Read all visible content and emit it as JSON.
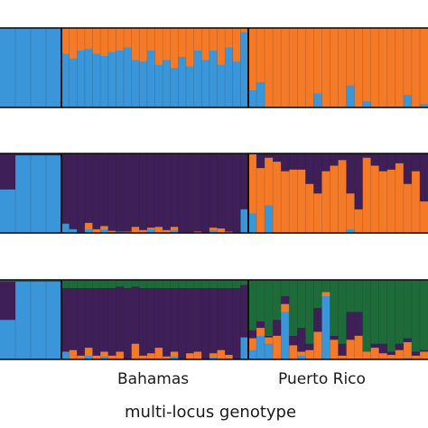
{
  "chart_data": [
    {
      "type": "bar",
      "stacked": true,
      "ylim": [
        0,
        1
      ],
      "populations": [
        {
          "name": "",
          "n_bars": 4
        },
        {
          "name": "Bahamas",
          "n_bars": 24
        },
        {
          "name": "Puerto Rico",
          "n_bars": 22
        }
      ],
      "series": [
        {
          "name": "",
          "color": "#3a96d8",
          "values": [
            1.0,
            1.0,
            1.0,
            1.0,
            0.68,
            0.62,
            0.72,
            0.74,
            0.68,
            0.65,
            0.7,
            0.72,
            0.76,
            0.6,
            0.58,
            0.72,
            0.54,
            0.6,
            0.5,
            0.64,
            0.52,
            0.72,
            0.6,
            0.72,
            0.54,
            0.76,
            0.58,
            0.95,
            0.22,
            0.32,
            0.0,
            0.0,
            0.0,
            0.0,
            0.0,
            0.0,
            0.18,
            0.0,
            0.0,
            0.0,
            0.28,
            0.0,
            0.08,
            0.0,
            0.0,
            0.0,
            0.0,
            0.16,
            0.0,
            0.05
          ]
        },
        {
          "name": "",
          "color": "#f47a28",
          "values": [
            0.0,
            0.0,
            0.0,
            0.0,
            0.32,
            0.38,
            0.28,
            0.26,
            0.32,
            0.35,
            0.3,
            0.28,
            0.24,
            0.4,
            0.42,
            0.28,
            0.46,
            0.4,
            0.5,
            0.36,
            0.48,
            0.28,
            0.4,
            0.28,
            0.46,
            0.24,
            0.42,
            0.05,
            0.78,
            0.68,
            1.0,
            1.0,
            1.0,
            1.0,
            1.0,
            1.0,
            0.82,
            1.0,
            1.0,
            1.0,
            0.72,
            1.0,
            0.92,
            1.0,
            1.0,
            1.0,
            1.0,
            0.84,
            1.0,
            0.95
          ]
        }
      ]
    },
    {
      "type": "bar",
      "stacked": true,
      "ylim": [
        0,
        1
      ],
      "series": [
        {
          "name": "",
          "color": "#3a96d8",
          "values": [
            0.55,
            0.98,
            0.98,
            0.98,
            0.12,
            0.05,
            0.0,
            0.05,
            0.0,
            0.05,
            0.0,
            0.02,
            0.0,
            0.0,
            0.0,
            0.05,
            0.0,
            0.0,
            0.04,
            0.0,
            0.0,
            0.0,
            0.0,
            0.04,
            0.0,
            0.0,
            0.0,
            0.3,
            0.25,
            0.0,
            0.35,
            0.0,
            0.0,
            0.0,
            0.0,
            0.0,
            0.0,
            0.0,
            0.0,
            0.0,
            0.05,
            0.0,
            0.0,
            0.0,
            0.0,
            0.0,
            0.0,
            0.0,
            0.0,
            0.0
          ]
        },
        {
          "name": "",
          "color": "#f47a28",
          "values": [
            0.0,
            0.0,
            0.0,
            0.0,
            0.0,
            0.0,
            0.0,
            0.08,
            0.05,
            0.04,
            0.03,
            0.0,
            0.02,
            0.08,
            0.04,
            0.02,
            0.08,
            0.04,
            0.04,
            0.0,
            0.0,
            0.02,
            0.0,
            0.03,
            0.06,
            0.02,
            0.0,
            0.0,
            0.75,
            0.82,
            0.6,
            0.9,
            0.78,
            0.8,
            0.8,
            0.62,
            0.5,
            0.78,
            0.85,
            0.92,
            0.45,
            0.3,
            0.95,
            0.85,
            0.78,
            0.8,
            0.88,
            0.62,
            0.78,
            0.4
          ]
        },
        {
          "name": "",
          "color": "#3e1f57",
          "values": [
            0.45,
            0.02,
            0.02,
            0.02,
            0.88,
            0.95,
            1.0,
            0.87,
            0.95,
            0.91,
            0.97,
            0.98,
            0.98,
            0.92,
            0.96,
            0.93,
            0.92,
            0.96,
            0.92,
            1.0,
            1.0,
            0.98,
            1.0,
            0.93,
            0.94,
            0.98,
            1.0,
            0.7,
            0.0,
            0.18,
            0.05,
            0.1,
            0.22,
            0.2,
            0.2,
            0.38,
            0.5,
            0.22,
            0.15,
            0.08,
            0.5,
            0.7,
            0.05,
            0.15,
            0.22,
            0.2,
            0.12,
            0.38,
            0.22,
            0.6
          ]
        }
      ]
    },
    {
      "type": "bar",
      "stacked": true,
      "ylim": [
        0,
        1
      ],
      "series": [
        {
          "name": "",
          "color": "#3a96d8",
          "values": [
            0.5,
            0.98,
            0.98,
            0.98,
            0.1,
            0.0,
            0.0,
            0.05,
            0.0,
            0.04,
            0.0,
            0.0,
            0.0,
            0.0,
            0.0,
            0.0,
            0.0,
            0.0,
            0.04,
            0.0,
            0.0,
            0.0,
            0.0,
            0.03,
            0.0,
            0.0,
            0.0,
            0.28,
            0.12,
            0.3,
            0.2,
            0.0,
            0.6,
            0.0,
            0.05,
            0.0,
            0.0,
            0.8,
            0.0,
            0.0,
            0.0,
            0.0,
            0.0,
            0.0,
            0.0,
            0.0,
            0.0,
            0.02,
            0.0,
            0.0
          ]
        },
        {
          "name": "",
          "color": "#f47a28",
          "values": [
            0.0,
            0.0,
            0.0,
            0.0,
            0.0,
            0.12,
            0.05,
            0.1,
            0.05,
            0.06,
            0.05,
            0.1,
            0.0,
            0.2,
            0.05,
            0.08,
            0.15,
            0.04,
            0.06,
            0.0,
            0.08,
            0.1,
            0.0,
            0.05,
            0.12,
            0.06,
            0.0,
            0.0,
            0.15,
            0.1,
            0.08,
            0.3,
            0.1,
            0.18,
            0.05,
            0.12,
            0.35,
            0.05,
            0.25,
            0.05,
            0.25,
            0.3,
            0.1,
            0.15,
            0.08,
            0.06,
            0.12,
            0.2,
            0.05,
            0.1
          ]
        },
        {
          "name": "",
          "color": "#3e1f57",
          "values": [
            0.48,
            0.0,
            0.0,
            0.0,
            0.8,
            0.78,
            0.85,
            0.75,
            0.85,
            0.8,
            0.85,
            0.82,
            0.9,
            0.72,
            0.85,
            0.82,
            0.75,
            0.86,
            0.8,
            0.9,
            0.82,
            0.8,
            0.9,
            0.82,
            0.78,
            0.84,
            0.9,
            0.66,
            0.1,
            0.08,
            0.02,
            0.2,
            0.1,
            0.12,
            0.3,
            0.08,
            0.3,
            0.0,
            0.05,
            0.15,
            0.35,
            0.3,
            0.0,
            0.05,
            0.12,
            0.04,
            0.08,
            0.05,
            0.05,
            0.02
          ]
        },
        {
          "name": "",
          "color": "#1e6b3a",
          "values": [
            0.02,
            0.02,
            0.02,
            0.02,
            0.1,
            0.1,
            0.1,
            0.1,
            0.1,
            0.1,
            0.1,
            0.08,
            0.1,
            0.08,
            0.1,
            0.1,
            0.1,
            0.1,
            0.1,
            0.1,
            0.1,
            0.1,
            0.1,
            0.1,
            0.1,
            0.1,
            0.1,
            0.06,
            0.63,
            0.52,
            0.7,
            0.5,
            0.2,
            0.7,
            0.6,
            0.8,
            0.35,
            0.15,
            0.7,
            0.8,
            0.4,
            0.4,
            0.9,
            0.8,
            0.8,
            0.9,
            0.8,
            0.73,
            0.9,
            0.88
          ]
        }
      ]
    }
  ],
  "labels": {
    "pop_bahamas": "Bahamas",
    "pop_pr": "Puerto Rico",
    "xlabel": "multi-locus genotype"
  }
}
